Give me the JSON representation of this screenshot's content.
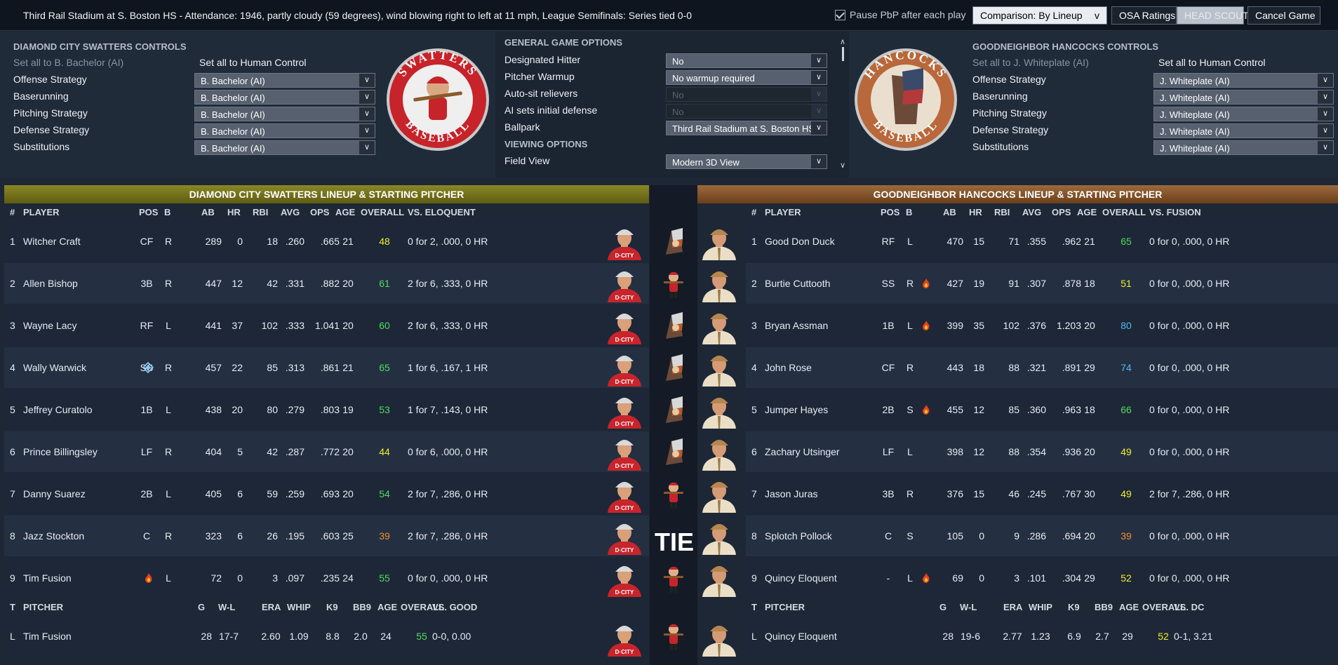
{
  "topbar": {
    "info": "Third Rail Stadium at S. Boston HS - Attendance: 1946, partly cloudy (59  degrees), wind blowing right to left at 11 mph, League Semifinals: Series tied 0-0",
    "pause_label": "Pause PbP after each play",
    "comparison": "Comparison: By Lineup",
    "osa": "OSA Ratings",
    "head_scout": "HEAD SCOUT",
    "cancel": "Cancel Game"
  },
  "away_controls": {
    "title": "DIAMOND CITY SWATTERS CONTROLS",
    "set_all_ai": "Set all to B. Bachelor (AI)",
    "set_all_human": "Set all to Human Control",
    "rows": [
      {
        "label": "Offense Strategy",
        "value": "B. Bachelor (AI)"
      },
      {
        "label": "Baserunning",
        "value": "B. Bachelor (AI)"
      },
      {
        "label": "Pitching Strategy",
        "value": "B. Bachelor (AI)"
      },
      {
        "label": "Defense Strategy",
        "value": "B. Bachelor (AI)"
      },
      {
        "label": "Substitutions",
        "value": "B. Bachelor (AI)"
      }
    ],
    "logo_top": "SWATTERS",
    "logo_bottom": "BASEBALL"
  },
  "home_controls": {
    "title": "GOODNEIGHBOR HANCOCKS CONTROLS",
    "set_all_ai": "Set all to J. Whiteplate (AI)",
    "set_all_human": "Set all to Human Control",
    "rows": [
      {
        "label": "Offense Strategy",
        "value": "J. Whiteplate (AI)"
      },
      {
        "label": "Baserunning",
        "value": "J. Whiteplate (AI)"
      },
      {
        "label": "Pitching Strategy",
        "value": "J. Whiteplate (AI)"
      },
      {
        "label": "Defense Strategy",
        "value": "J. Whiteplate (AI)"
      },
      {
        "label": "Substitutions",
        "value": "J. Whiteplate (AI)"
      }
    ],
    "logo_top": "HANCOCKS",
    "logo_bottom": "BASEBALL"
  },
  "options": {
    "general_title": "GENERAL GAME OPTIONS",
    "viewing_title": "VIEWING OPTIONS",
    "rows": [
      {
        "label": "Designated Hitter",
        "value": "No"
      },
      {
        "label": "Pitcher Warmup",
        "value": "No warmup required"
      },
      {
        "label": "Auto-sit relievers",
        "value": "No"
      },
      {
        "label": "AI sets initial defense",
        "value": "No"
      },
      {
        "label": "Ballpark",
        "value": "Third Rail Stadium at S. Boston HS"
      }
    ],
    "field_view_label": "Field View",
    "field_view_value": "Modern 3D View"
  },
  "away_lineup": {
    "title": "DIAMOND CITY SWATTERS LINEUP & STARTING PITCHER",
    "cols": [
      "#",
      "PLAYER",
      "POS",
      "B",
      "AB",
      "HR",
      "RBI",
      "AVG",
      "OPS",
      "AGE",
      "OVERALL",
      "VS. ELOQUENT"
    ],
    "rows": [
      [
        "1",
        "Witcher Craft",
        "CF",
        "R",
        "289",
        "0",
        "18",
        ".260",
        ".665",
        "21",
        "48",
        "0 for 2, .000, 0 HR"
      ],
      [
        "2",
        "Allen Bishop",
        "3B",
        "R",
        "447",
        "12",
        "42",
        ".331",
        ".882",
        "20",
        "61",
        "2 for 6, .333, 0 HR"
      ],
      [
        "3",
        "Wayne Lacy",
        "RF",
        "L",
        "441",
        "37",
        "102",
        ".333",
        "1.041",
        "20",
        "60",
        "2 for 6, .333, 0 HR"
      ],
      [
        "4",
        "Wally Warwick",
        "SS",
        "R",
        "457",
        "22",
        "85",
        ".313",
        ".861",
        "21",
        "65",
        "1 for 6, .167, 1 HR"
      ],
      [
        "5",
        "Jeffrey Curatolo",
        "1B",
        "L",
        "438",
        "20",
        "80",
        ".279",
        ".803",
        "19",
        "53",
        "1 for 7, .143, 0 HR"
      ],
      [
        "6",
        "Prince Billingsley",
        "LF",
        "R",
        "404",
        "5",
        "42",
        ".287",
        ".772",
        "20",
        "44",
        "0 for 6, .000, 0 HR"
      ],
      [
        "7",
        "Danny Suarez",
        "2B",
        "L",
        "405",
        "6",
        "59",
        ".259",
        ".693",
        "20",
        "54",
        "2 for 7, .286, 0 HR"
      ],
      [
        "8",
        "Jazz Stockton",
        "C",
        "R",
        "323",
        "6",
        "26",
        ".195",
        ".603",
        "25",
        "39",
        "2 for 7, .286, 0 HR"
      ],
      [
        "9",
        "Tim Fusion",
        "-",
        "L",
        "72",
        "0",
        "3",
        ".097",
        ".235",
        "24",
        "55",
        "0 for 0, .000, 0 HR"
      ]
    ],
    "overall_colors": [
      "y",
      "g",
      "g",
      "g",
      "g",
      "y",
      "g",
      "o",
      "g"
    ],
    "icons": [
      "",
      "",
      "",
      "diamond",
      "",
      "",
      "",
      "",
      "fire"
    ],
    "pcols": [
      "T",
      "PITCHER",
      "G",
      "W-L",
      "ERA",
      "WHIP",
      "K9",
      "BB9",
      "AGE",
      "OVERALL",
      "VS. GOOD"
    ],
    "pitcher": [
      "L",
      "Tim Fusion",
      "28",
      "17-7",
      "2.60",
      "1.09",
      "8.8",
      "2.0",
      "24",
      "55",
      "0-0, 0.00"
    ]
  },
  "home_lineup": {
    "title": "GOODNEIGHBOR HANCOCKS LINEUP & STARTING PITCHER",
    "cols": [
      "#",
      "PLAYER",
      "POS",
      "B",
      "AB",
      "HR",
      "RBI",
      "AVG",
      "OPS",
      "AGE",
      "OVERALL",
      "VS. FUSION"
    ],
    "rows": [
      [
        "1",
        "Good Don Duck",
        "RF",
        "L",
        "470",
        "15",
        "71",
        ".355",
        ".962",
        "21",
        "65",
        "0 for 0, .000, 0 HR"
      ],
      [
        "2",
        "Burtie Cuttooth",
        "SS",
        "R",
        "427",
        "19",
        "91",
        ".307",
        ".878",
        "18",
        "51",
        "0 for 0, .000, 0 HR"
      ],
      [
        "3",
        "Bryan Assman",
        "1B",
        "L",
        "399",
        "35",
        "102",
        ".376",
        "1.203",
        "20",
        "80",
        "0 for 0, .000, 0 HR"
      ],
      [
        "4",
        "John Rose",
        "CF",
        "R",
        "443",
        "18",
        "88",
        ".321",
        ".891",
        "29",
        "74",
        "0 for 0, .000, 0 HR"
      ],
      [
        "5",
        "Jumper Hayes",
        "2B",
        "S",
        "455",
        "12",
        "85",
        ".360",
        ".963",
        "18",
        "66",
        "0 for 0, .000, 0 HR"
      ],
      [
        "6",
        "Zachary Utsinger",
        "LF",
        "L",
        "398",
        "12",
        "88",
        ".354",
        ".936",
        "20",
        "49",
        "0 for 0, .000, 0 HR"
      ],
      [
        "7",
        "Jason Juras",
        "3B",
        "R",
        "376",
        "15",
        "46",
        ".245",
        ".767",
        "30",
        "49",
        "2 for 7, .286, 0 HR"
      ],
      [
        "8",
        "Splotch Pollock",
        "C",
        "S",
        "105",
        "0",
        "9",
        ".286",
        ".694",
        "20",
        "39",
        "0 for 0, .000, 0 HR"
      ],
      [
        "9",
        "Quincy Eloquent",
        "-",
        "L",
        "69",
        "0",
        "3",
        ".101",
        ".304",
        "29",
        "52",
        "0 for 0, .000, 0 HR"
      ]
    ],
    "overall_colors": [
      "g",
      "y",
      "b",
      "b",
      "g",
      "y",
      "y",
      "o",
      "y"
    ],
    "icons": [
      "",
      "fire",
      "fire",
      "",
      "fire",
      "",
      "",
      "",
      "fire"
    ],
    "pcols": [
      "T",
      "PITCHER",
      "G",
      "W-L",
      "ERA",
      "WHIP",
      "K9",
      "BB9",
      "AGE",
      "OVERALL",
      "VS. DC"
    ],
    "pitcher": [
      "L",
      "Quincy Eloquent",
      "28",
      "19-6",
      "2.77",
      "1.23",
      "6.9",
      "2.7",
      "29",
      "52",
      "0-1, 3.21"
    ]
  },
  "matchup_icons": [
    "hancock",
    "swatter",
    "hancock",
    "hancock",
    "hancock",
    "hancock",
    "swatter",
    "tie",
    "swatter",
    "swatter"
  ],
  "tie_label": "TIE",
  "colors": {
    "away_header": "#6f6d18",
    "home_header": "#7a4a22",
    "yellow": "#f1ef2e",
    "green": "#4fdc5e",
    "orange": "#ef8d2a",
    "blue": "#55b8f0"
  }
}
